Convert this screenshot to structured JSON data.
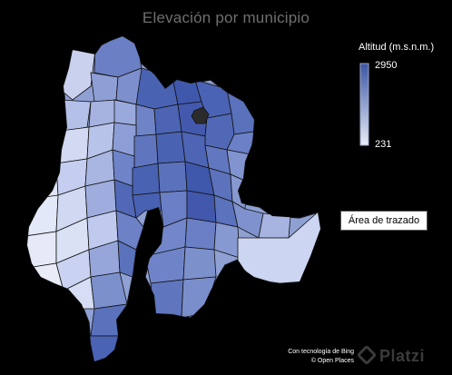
{
  "chart_data": {
    "type": "choropleth",
    "title": "Elevación por municipio",
    "legend": {
      "title": "Altitud (m.s.n.m.)",
      "max": "2950",
      "min": "231",
      "placement": "top-right",
      "color_high": "#3a56a6",
      "color_low": "#e9ecf7"
    },
    "highlighted_color": "#2b2b2b",
    "grid": false
  },
  "plot_area_label": "Área de trazado",
  "credits": {
    "line1": "Con tecnología de Bing",
    "line2": "© Open Places"
  },
  "watermark": "Platzi"
}
